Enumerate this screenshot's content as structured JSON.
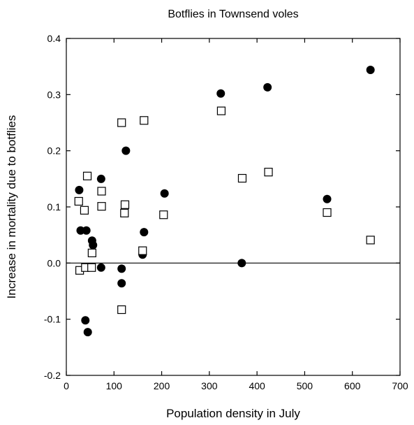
{
  "chart_data": {
    "type": "scatter",
    "title": "Botflies in Townsend voles",
    "xlabel": "Population density in July",
    "ylabel": "Increase in mortality due to botflies",
    "xlim": [
      0,
      700
    ],
    "ylim": [
      -0.2,
      0.4
    ],
    "x_ticks": [
      0,
      100,
      200,
      300,
      400,
      500,
      600,
      700
    ],
    "y_ticks": [
      -0.2,
      -0.1,
      0.0,
      0.1,
      0.2,
      0.3,
      0.4
    ],
    "x_tick_labels": [
      "0",
      "100",
      "200",
      "300",
      "400",
      "500",
      "600",
      "700"
    ],
    "y_tick_labels": [
      "-0.2",
      "-0.1",
      "0.0",
      "0.1",
      "0.2",
      "0.3",
      "0.4"
    ],
    "grid": false,
    "reference_line_y": 0,
    "series": [
      {
        "marker": "filled-circle",
        "color": "#000000",
        "points": [
          [
            27,
            0.13
          ],
          [
            30,
            0.058
          ],
          [
            42,
            0.058
          ],
          [
            40,
            -0.102
          ],
          [
            45,
            -0.123
          ],
          [
            54,
            0.04
          ],
          [
            56,
            0.032
          ],
          [
            73,
            0.15
          ],
          [
            73,
            -0.008
          ],
          [
            116,
            -0.01
          ],
          [
            116,
            -0.036
          ],
          [
            125,
            0.2
          ],
          [
            160,
            0.015
          ],
          [
            163,
            0.055
          ],
          [
            206,
            0.124
          ],
          [
            324,
            0.302
          ],
          [
            368,
            0.0
          ],
          [
            422,
            0.313
          ],
          [
            547,
            0.114
          ],
          [
            638,
            0.344
          ]
        ]
      },
      {
        "marker": "open-square",
        "color": "#000000",
        "points": [
          [
            26,
            0.11
          ],
          [
            28,
            -0.013
          ],
          [
            38,
            0.094
          ],
          [
            44,
            0.155
          ],
          [
            40,
            -0.008
          ],
          [
            53,
            -0.008
          ],
          [
            54,
            0.018
          ],
          [
            74,
            0.128
          ],
          [
            74,
            0.101
          ],
          [
            116,
            0.25
          ],
          [
            116,
            -0.083
          ],
          [
            123,
            0.104
          ],
          [
            122,
            0.089
          ],
          [
            163,
            0.254
          ],
          [
            160,
            0.022
          ],
          [
            204,
            0.086
          ],
          [
            325,
            0.271
          ],
          [
            369,
            0.151
          ],
          [
            424,
            0.162
          ],
          [
            547,
            0.09
          ],
          [
            638,
            0.041
          ]
        ]
      }
    ]
  }
}
